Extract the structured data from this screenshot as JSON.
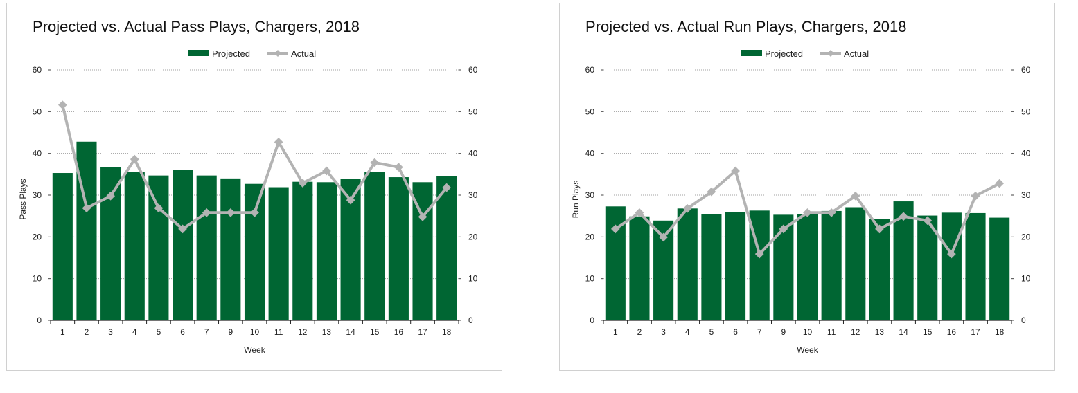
{
  "chart_data": [
    {
      "type": "bar",
      "title": "Projected vs. Actual Pass Plays, Chargers, 2018",
      "xlabel": "Week",
      "ylabel": "Pass Plays",
      "ylim": [
        0,
        60
      ],
      "y2lim": [
        0,
        60
      ],
      "yticks": [
        0,
        10,
        20,
        30,
        40,
        50,
        60
      ],
      "grid": true,
      "legend": "top-center",
      "categories": [
        "1",
        "2",
        "3",
        "4",
        "5",
        "6",
        "7",
        "9",
        "10",
        "11",
        "12",
        "13",
        "14",
        "15",
        "16",
        "17",
        "18"
      ],
      "series": [
        {
          "name": "Projected",
          "type": "bar",
          "color": "#006633",
          "values": [
            35.3,
            42.8,
            36.7,
            35.6,
            34.7,
            36.1,
            34.7,
            34.0,
            32.7,
            31.9,
            33.2,
            33.1,
            33.9,
            35.6,
            34.3,
            33.1,
            34.5
          ]
        },
        {
          "name": "Actual",
          "type": "line",
          "color": "#b3b3b3",
          "values": [
            51.6,
            26.9,
            29.8,
            38.6,
            26.9,
            21.9,
            25.8,
            25.8,
            25.8,
            42.7,
            32.9,
            35.8,
            28.8,
            37.8,
            36.7,
            24.8,
            31.8
          ]
        }
      ]
    },
    {
      "type": "bar",
      "title": "Projected vs. Actual Run Plays, Chargers, 2018",
      "xlabel": "Week",
      "ylabel": "Run Plays",
      "ylim": [
        0,
        60
      ],
      "y2lim": [
        0,
        60
      ],
      "yticks": [
        0,
        10,
        20,
        30,
        40,
        50,
        60
      ],
      "grid": true,
      "legend": "top-center",
      "categories": [
        "1",
        "2",
        "3",
        "4",
        "5",
        "6",
        "7",
        "9",
        "10",
        "11",
        "12",
        "13",
        "14",
        "15",
        "16",
        "17",
        "18"
      ],
      "series": [
        {
          "name": "Projected",
          "type": "bar",
          "color": "#006633",
          "values": [
            27.3,
            24.9,
            23.9,
            26.8,
            25.5,
            25.9,
            26.3,
            25.3,
            25.4,
            26.2,
            27.1,
            24.3,
            28.5,
            25.1,
            25.8,
            25.7,
            24.6
          ]
        },
        {
          "name": "Actual",
          "type": "line",
          "color": "#b3b3b3",
          "values": [
            21.9,
            25.8,
            19.9,
            26.8,
            30.8,
            35.8,
            15.9,
            21.9,
            25.8,
            25.8,
            29.8,
            21.9,
            24.9,
            23.9,
            15.9,
            29.8,
            32.8
          ]
        }
      ]
    }
  ]
}
